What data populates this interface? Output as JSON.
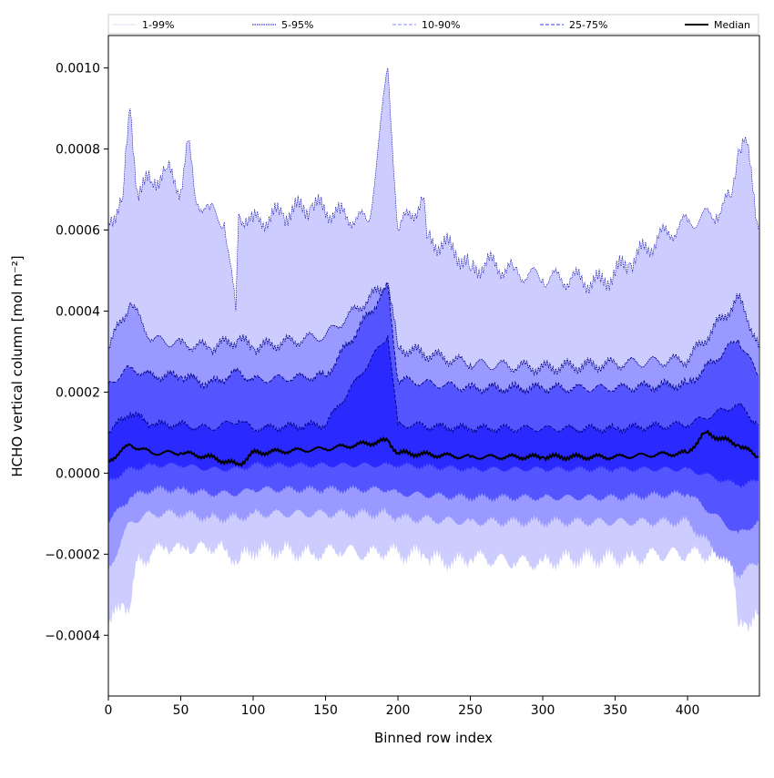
{
  "chart_data": {
    "type": "area",
    "xlabel": "Binned row index",
    "ylabel": "HCHO vertical column [mol m⁻²]",
    "xlim": [
      0,
      449
    ],
    "ylim": [
      -0.00055,
      0.00108
    ],
    "xticks": [
      0,
      50,
      100,
      150,
      200,
      250,
      300,
      350,
      400
    ],
    "xtick_labels": [
      "0",
      "50",
      "100",
      "150",
      "200",
      "250",
      "300",
      "350",
      "400"
    ],
    "yticks": [
      -0.0004,
      -0.0002,
      0.0,
      0.0002,
      0.0004,
      0.0006,
      0.0008,
      0.001
    ],
    "ytick_labels": [
      "−0.0004",
      "−0.0002",
      "0.0000",
      "0.0002",
      "0.0004",
      "0.0006",
      "0.0008",
      "0.0010"
    ],
    "grid": false,
    "legend_position": "top",
    "legend": [
      {
        "label": "1-99%",
        "style": "dotted",
        "color": "#ccccff"
      },
      {
        "label": "5-95%",
        "style": "dotted",
        "color": "#0000aa"
      },
      {
        "label": "10-90%",
        "style": "dashed",
        "color": "#8888ff"
      },
      {
        "label": "25-75%",
        "style": "dashed",
        "color": "#3333ee"
      },
      {
        "label": "Median",
        "style": "solid",
        "color": "#000000"
      }
    ],
    "colors": {
      "band_1_99": "#ccccff",
      "band_5_95": "#9999ff",
      "band_10_90": "#5555ff",
      "band_25_75": "#2a2aff",
      "line_dark": "#000080",
      "median": "#000000"
    },
    "series": [
      {
        "name": "1-99%",
        "index": [
          0,
          10,
          15,
          20,
          30,
          40,
          50,
          55,
          60,
          70,
          80,
          88,
          90,
          95,
          100,
          120,
          140,
          160,
          180,
          193,
          200,
          218,
          220,
          240,
          250,
          260,
          280,
          300,
          320,
          340,
          360,
          380,
          400,
          420,
          430,
          435,
          440,
          449
        ],
        "upper": [
          0.00062,
          0.00068,
          0.0009,
          0.0007,
          0.00072,
          0.00075,
          0.0007,
          0.00082,
          0.00068,
          0.00065,
          0.00062,
          0.0004,
          0.00064,
          0.00063,
          0.00062,
          0.00064,
          0.00066,
          0.00064,
          0.00062,
          0.001,
          0.0006,
          0.00068,
          0.00058,
          0.00055,
          0.0005,
          0.00052,
          0.0005,
          0.00048,
          0.00048,
          0.00047,
          0.00052,
          0.00058,
          0.00062,
          0.00064,
          0.00068,
          0.0008,
          0.00083,
          0.0006
        ],
        "lower": [
          -0.00038,
          -0.00032,
          -0.00033,
          -0.00022,
          -0.0002,
          -0.00018,
          -0.00019,
          -0.00018,
          -0.00019,
          -0.00018,
          -0.00019,
          -0.00021,
          -0.00022,
          -0.0002,
          -0.00019,
          -0.00019,
          -0.0002,
          -0.00019,
          -0.0002,
          -0.00019,
          -0.0002,
          -0.0002,
          -0.00021,
          -0.00022,
          -0.00021,
          -0.00021,
          -0.00022,
          -0.00022,
          -0.00021,
          -0.00021,
          -0.00021,
          -0.0002,
          -0.0002,
          -0.0002,
          -0.0002,
          -0.00038,
          -0.00037,
          -0.00035
        ]
      },
      {
        "name": "5-95%",
        "index": [
          0,
          15,
          30,
          50,
          70,
          90,
          100,
          150,
          193,
          200,
          250,
          300,
          350,
          400,
          435,
          440,
          449
        ],
        "upper": [
          0.00031,
          0.00042,
          0.00033,
          0.00032,
          0.00031,
          0.00033,
          0.00031,
          0.00034,
          0.00047,
          0.00031,
          0.00027,
          0.00026,
          0.00027,
          0.00028,
          0.00043,
          0.0004,
          0.00031
        ],
        "lower": [
          -0.00024,
          -0.00012,
          -0.0001,
          -0.0001,
          -0.00011,
          -0.00011,
          -0.0001,
          -0.0001,
          -0.0001,
          -0.00011,
          -0.00012,
          -0.00012,
          -0.00012,
          -0.00012,
          -0.00025,
          -0.00024,
          -0.00022
        ]
      },
      {
        "name": "10-90%",
        "index": [
          0,
          15,
          30,
          50,
          70,
          90,
          100,
          150,
          193,
          200,
          250,
          300,
          350,
          400,
          435,
          449
        ],
        "upper": [
          0.00022,
          0.00026,
          0.00024,
          0.00024,
          0.00022,
          0.00025,
          0.00023,
          0.00024,
          0.00046,
          0.00023,
          0.00021,
          0.00021,
          0.00021,
          0.00022,
          0.00033,
          0.00024
        ],
        "lower": [
          -0.00012,
          -6e-05,
          -4e-05,
          -4e-05,
          -5e-05,
          -5e-05,
          -4e-05,
          -4e-05,
          -4e-05,
          -5e-05,
          -6e-05,
          -6e-05,
          -6e-05,
          -5e-05,
          -0.00015,
          -0.00012
        ]
      },
      {
        "name": "25-75%",
        "index": [
          0,
          15,
          30,
          50,
          70,
          90,
          100,
          150,
          193,
          200,
          250,
          300,
          350,
          400,
          435,
          449
        ],
        "upper": [
          0.0001,
          0.00015,
          0.00012,
          0.00012,
          0.00011,
          0.00013,
          0.00011,
          0.00012,
          0.00034,
          0.00012,
          0.00011,
          0.00011,
          0.00011,
          0.00012,
          0.00017,
          0.00012
        ],
        "lower": [
          -2e-05,
          1e-05,
          2e-05,
          2e-05,
          1e-05,
          1e-05,
          2e-05,
          2e-05,
          2e-05,
          2e-05,
          1e-05,
          1e-05,
          1e-05,
          1e-05,
          -3e-05,
          -2e-05
        ]
      },
      {
        "name": "Median",
        "index": [
          0,
          15,
          30,
          50,
          70,
          90,
          100,
          150,
          193,
          200,
          250,
          300,
          350,
          400,
          412,
          435,
          449
        ],
        "values": [
          3e-05,
          7e-05,
          5e-05,
          5e-05,
          4e-05,
          2e-05,
          5e-05,
          6e-05,
          8e-05,
          5e-05,
          4e-05,
          4e-05,
          4e-05,
          5e-05,
          0.0001,
          7e-05,
          4e-05
        ]
      }
    ]
  }
}
